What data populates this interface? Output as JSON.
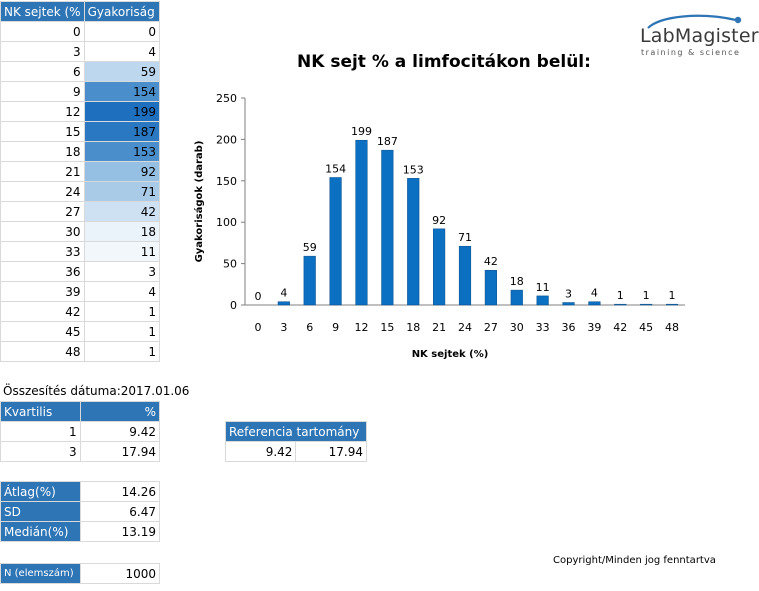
{
  "freq_table": {
    "headers": [
      "NK sejtek (%",
      "Gyakoriság"
    ],
    "rows": [
      {
        "x": "0",
        "freq": "0",
        "shade": "#ffffff"
      },
      {
        "x": "3",
        "freq": "4",
        "shade": "#ffffff"
      },
      {
        "x": "6",
        "freq": "59",
        "shade": "#bdd7ee"
      },
      {
        "x": "9",
        "freq": "154",
        "shade": "#4a8fcc"
      },
      {
        "x": "12",
        "freq": "199",
        "shade": "#1f6fbf"
      },
      {
        "x": "15",
        "freq": "187",
        "shade": "#2b78c2"
      },
      {
        "x": "18",
        "freq": "153",
        "shade": "#4a8fcc"
      },
      {
        "x": "21",
        "freq": "92",
        "shade": "#95bfe3"
      },
      {
        "x": "24",
        "freq": "71",
        "shade": "#a9cbe8"
      },
      {
        "x": "27",
        "freq": "42",
        "shade": "#cde1f3"
      },
      {
        "x": "30",
        "freq": "18",
        "shade": "#eaf2fa"
      },
      {
        "x": "33",
        "freq": "11",
        "shade": "#f2f7fc"
      },
      {
        "x": "36",
        "freq": "3",
        "shade": "#ffffff"
      },
      {
        "x": "39",
        "freq": "4",
        "shade": "#ffffff"
      },
      {
        "x": "42",
        "freq": "1",
        "shade": "#ffffff"
      },
      {
        "x": "45",
        "freq": "1",
        "shade": "#ffffff"
      },
      {
        "x": "48",
        "freq": "1",
        "shade": "#ffffff"
      }
    ]
  },
  "summary_date": "Összesítés dátuma:2017.01.06",
  "quartile_table": {
    "headers": [
      "Kvartilis",
      "%"
    ],
    "rows": [
      {
        "q": "1",
        "value": "9.42"
      },
      {
        "q": "3",
        "value": "17.94"
      }
    ]
  },
  "reference": {
    "title": "Referencia tartomány",
    "low": "9.42",
    "high": "17.94"
  },
  "stats": [
    {
      "label": "Átlag(%)",
      "value": "14.26"
    },
    {
      "label": "SD",
      "value": "6.47"
    },
    {
      "label": "Medián(%)",
      "value": "13.19"
    }
  ],
  "n_row": {
    "label": "N (elemszám)",
    "value": "1000"
  },
  "logo": {
    "main": "LabMagister",
    "sub": "training & science"
  },
  "copyright": "Copyright/Minden jog fenntartva",
  "colors": {
    "header": "#2e75b6",
    "bar": "#0b6fc2"
  },
  "chart_data": {
    "type": "bar",
    "title": "NK sejt % a limfocitákon belül:",
    "xlabel": "NK sejtek (%)",
    "ylabel": "Gyakoriságok (darab)",
    "categories": [
      "0",
      "3",
      "6",
      "9",
      "12",
      "15",
      "18",
      "21",
      "24",
      "27",
      "30",
      "33",
      "36",
      "39",
      "42",
      "45",
      "48"
    ],
    "values": [
      0,
      4,
      59,
      154,
      199,
      187,
      153,
      92,
      71,
      42,
      18,
      11,
      3,
      4,
      1,
      1,
      1
    ],
    "yticks": [
      "0",
      "50",
      "100",
      "150",
      "200",
      "250"
    ],
    "ylim": [
      0,
      250
    ],
    "grid": false,
    "data_labels": true,
    "legend": "none"
  }
}
